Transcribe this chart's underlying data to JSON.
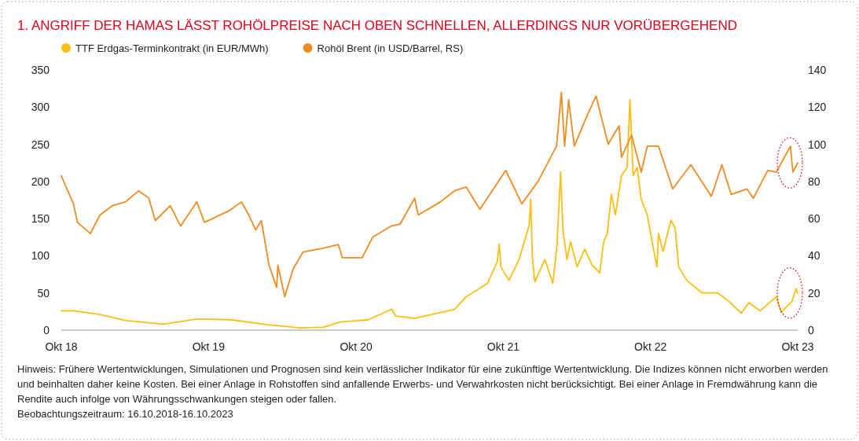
{
  "chart_data": {
    "type": "line",
    "title": "1.   ANGRIFF DER HAMAS LÄSST ROHÖLPREISE NACH OBEN SCHNELLEN, ALLERDINGS NUR VORÜBERGEHEND",
    "legend": "top left",
    "grid": false,
    "marker": "none",
    "line_style": "solid",
    "xlim": [
      "2018-10-16",
      "2023-10-16"
    ],
    "xticks": [
      {
        "value": "2018-10-16",
        "label": "Okt 18"
      },
      {
        "value": "2019-10-16",
        "label": "Okt 19"
      },
      {
        "value": "2020-10-16",
        "label": "Okt 20"
      },
      {
        "value": "2021-10-16",
        "label": "Okt 21"
      },
      {
        "value": "2022-10-16",
        "label": "Okt 22"
      },
      {
        "value": "2023-10-16",
        "label": "Okt 23"
      }
    ],
    "ylim": [
      0,
      350
    ],
    "yticks": [
      0,
      50,
      100,
      150,
      200,
      250,
      300,
      350
    ],
    "y2lim": [
      0,
      140
    ],
    "y2ticks": [
      0,
      20,
      40,
      60,
      80,
      100,
      120,
      140
    ],
    "series": [
      {
        "name": "TTF Erdgas-Terminkontrakt (in EUR/MWh)",
        "color": "#fbbf13",
        "x": [
          "2018-10-16",
          "2018-11-15",
          "2019-01-20",
          "2019-03-24",
          "2019-06-26",
          "2019-09-17",
          "2019-12-10",
          "2020-03-16",
          "2020-06-01",
          "2020-07-28",
          "2020-09-06",
          "2020-11-15",
          "2021-01-12",
          "2021-01-22",
          "2021-03-10",
          "2021-06-17",
          "2021-07-16",
          "2021-09-07",
          "2021-10-01",
          "2021-10-06",
          "2021-10-10",
          "2021-10-30",
          "2021-11-24",
          "2021-12-19",
          "2021-12-23",
          "2021-12-27",
          "2022-01-02",
          "2022-01-27",
          "2022-02-16",
          "2022-02-26",
          "2022-03-07",
          "2022-03-13",
          "2022-03-23",
          "2022-04-01",
          "2022-04-17",
          "2022-05-06",
          "2022-05-24",
          "2022-06-12",
          "2022-06-22",
          "2022-07-01",
          "2022-07-11",
          "2022-07-21",
          "2022-08-05",
          "2022-08-19",
          "2022-08-26",
          "2022-09-03",
          "2022-09-13",
          "2022-09-23",
          "2022-10-08",
          "2022-10-22",
          "2022-11-01",
          "2022-11-05",
          "2022-11-16",
          "2022-12-06",
          "2022-12-16",
          "2022-12-25",
          "2023-01-14",
          "2023-02-21",
          "2023-04-01",
          "2023-04-28",
          "2023-05-29",
          "2023-06-17",
          "2023-07-15",
          "2023-08-24",
          "2023-09-05",
          "2023-10-02",
          "2023-10-12",
          "2023-10-16"
        ],
        "values": [
          26,
          26,
          21,
          13,
          8,
          15,
          14,
          7,
          3,
          4,
          11,
          14,
          28,
          19,
          16,
          28,
          45,
          63,
          92,
          116,
          85,
          67,
          95,
          141,
          176,
          98,
          65,
          95,
          63,
          113,
          213,
          134,
          95,
          119,
          85,
          109,
          88,
          77,
          119,
          130,
          183,
          155,
          208,
          219,
          310,
          208,
          219,
          176,
          155,
          113,
          85,
          130,
          106,
          148,
          137,
          85,
          67,
          50,
          50,
          39,
          23,
          37,
          26,
          45,
          24,
          39,
          56,
          50
        ]
      },
      {
        "name": "Rohöl Brent (in USD/Barrel, RS)",
        "color": "#f28a22",
        "axis": "y2",
        "x": [
          "2018-10-16",
          "2018-11-15",
          "2018-11-25",
          "2018-12-27",
          "2019-01-20",
          "2019-02-20",
          "2019-03-24",
          "2019-04-26",
          "2019-05-21",
          "2019-06-06",
          "2019-07-13",
          "2019-08-08",
          "2019-09-17",
          "2019-10-06",
          "2019-12-04",
          "2020-01-06",
          "2020-01-26",
          "2020-02-10",
          "2020-02-24",
          "2020-03-14",
          "2020-04-02",
          "2020-04-05",
          "2020-04-22",
          "2020-05-13",
          "2020-06-06",
          "2020-07-25",
          "2020-09-02",
          "2020-09-12",
          "2020-10-31",
          "2020-11-26",
          "2021-01-11",
          "2021-02-02",
          "2021-03-10",
          "2021-03-19",
          "2021-05-13",
          "2021-06-17",
          "2021-07-16",
          "2021-08-19",
          "2021-10-22",
          "2021-12-01",
          "2022-01-10",
          "2022-02-25",
          "2022-03-09",
          "2022-03-17",
          "2022-03-27",
          "2022-04-10",
          "2022-05-09",
          "2022-06-03",
          "2022-07-03",
          "2022-07-30",
          "2022-08-05",
          "2022-08-30",
          "2022-09-23",
          "2022-10-08",
          "2022-11-05",
          "2022-12-10",
          "2023-01-24",
          "2023-03-16",
          "2023-04-11",
          "2023-05-04",
          "2023-06-12",
          "2023-06-28",
          "2023-08-03",
          "2023-08-24",
          "2023-09-28",
          "2023-10-04",
          "2023-10-16"
        ],
        "values": [
          83,
          68,
          58,
          52,
          62,
          67,
          69,
          75,
          71,
          59,
          67,
          56,
          69,
          58,
          64,
          69,
          61,
          54,
          59,
          35,
          23,
          35,
          18,
          33,
          42,
          44,
          46,
          39,
          39,
          50,
          56,
          57,
          71,
          62,
          69,
          75,
          77,
          65,
          86,
          68,
          80,
          99,
          128,
          99,
          124,
          99,
          114,
          126,
          100,
          110,
          93,
          105,
          85,
          99,
          99,
          76,
          89,
          72,
          89,
          73,
          76,
          71,
          86,
          85,
          99,
          85,
          90
        ]
      }
    ],
    "annotations": [
      "Hinweis: Frühere Wertentwicklungen, Simulationen und Prognosen sind kein verlässlicher Indikator für eine zukünftige Wertentwicklung. Die Indizes können nicht erworben werden und beinhalten daher keine Kosten. Bei einer Anlage in Rohstoffen sind anfallende Erwerbs- und Verwahrkosten nicht berücksichtigt. Bei einer Anlage in Fremdwährung kann die Rendite auch infolge von Währungsschwankungen steigen oder fallen.",
      "Beobachtungszeitraum: 16.10.2018-16.10.2023"
    ]
  }
}
